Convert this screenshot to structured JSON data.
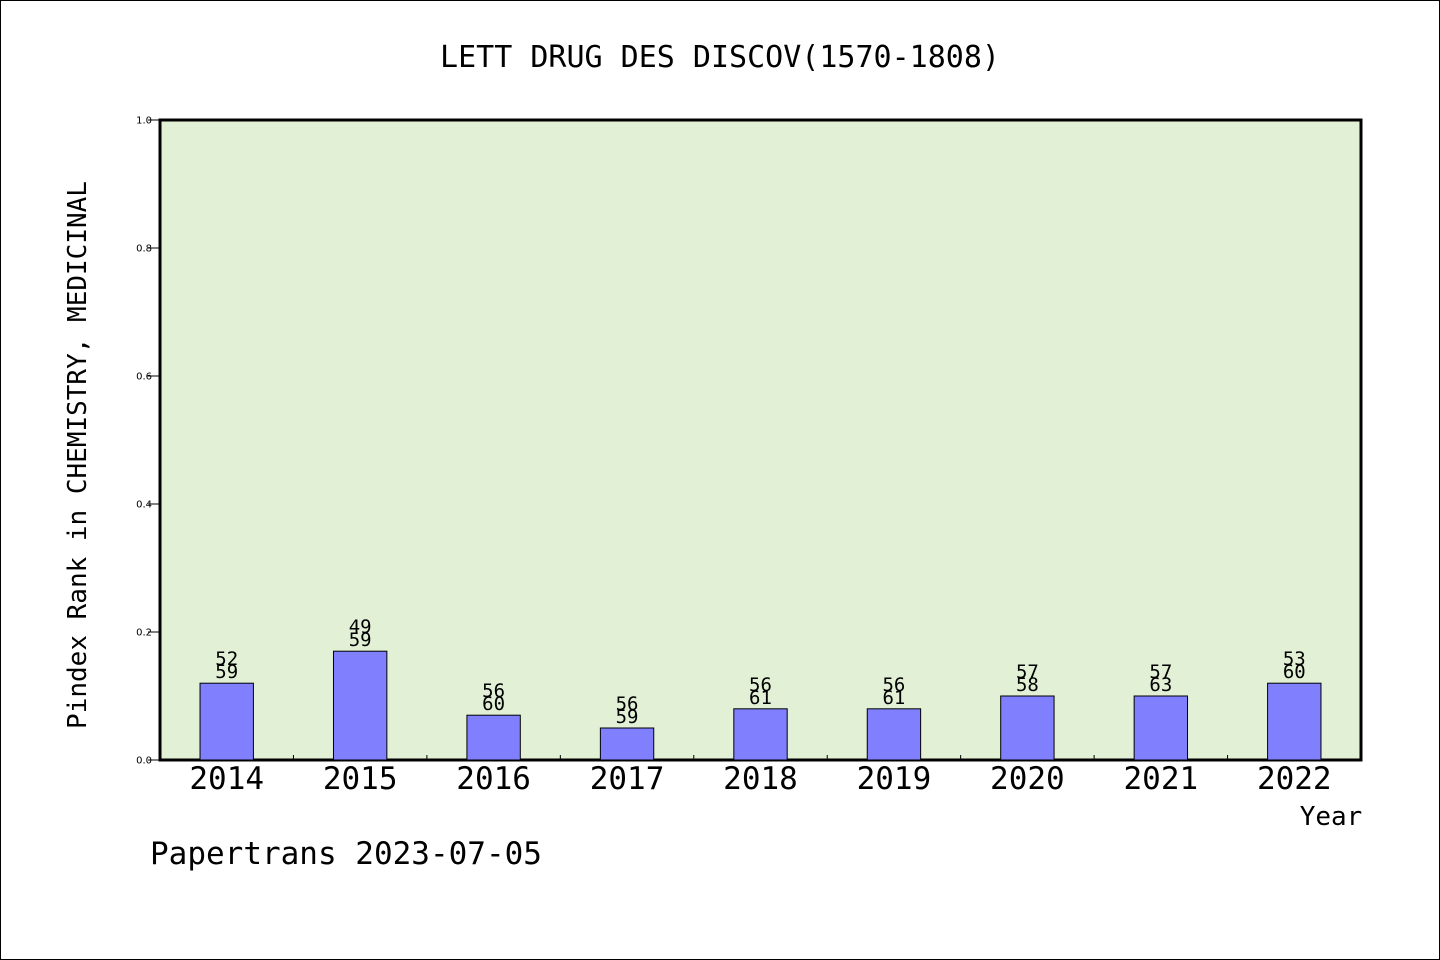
{
  "chart_data": {
    "type": "bar",
    "title": "LETT DRUG DES DISCOV(1570-1808)",
    "xlabel": "Year",
    "ylabel": "Pindex Rank in CHEMISTRY, MEDICINAL",
    "categories": [
      "2014",
      "2015",
      "2016",
      "2017",
      "2018",
      "2019",
      "2020",
      "2021",
      "2022"
    ],
    "values": [
      0.12,
      0.17,
      0.07,
      0.05,
      0.08,
      0.08,
      0.1,
      0.1,
      0.12
    ],
    "labels_top": [
      "52",
      "49",
      "56",
      "56",
      "56",
      "56",
      "57",
      "57",
      "53"
    ],
    "labels_bottom": [
      "59",
      "59",
      "60",
      "59",
      "61",
      "61",
      "58",
      "63",
      "60"
    ],
    "ylim": [
      0,
      1.0
    ],
    "yticks": [
      "0.0",
      "0.2",
      "0.4",
      "0.6",
      "0.8",
      "1.0"
    ],
    "ytick_values": [
      0,
      0.2,
      0.4,
      0.6,
      0.8,
      1.0
    ],
    "grid": false,
    "colors": {
      "bar_fill": "#8080ff",
      "bar_stroke": "#000000",
      "plot_bg": "#e2f0d6",
      "axis": "#000000"
    }
  },
  "footer": "Papertrans 2023-07-05"
}
